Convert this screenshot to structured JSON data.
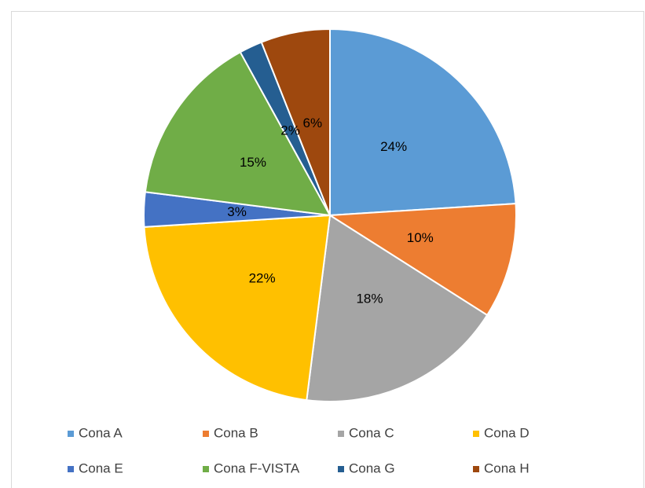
{
  "chart_data": {
    "type": "pie",
    "categories": [
      "Cona A",
      "Cona B",
      "Cona C",
      "Cona D",
      "Cona E",
      "Cona F-VISTA",
      "Cona G",
      "Cona H"
    ],
    "values": [
      24,
      10,
      18,
      22,
      3,
      15,
      2,
      6
    ],
    "value_labels": [
      "24%",
      "10%",
      "18%",
      "22%",
      "3%",
      "15%",
      "2%",
      "6%"
    ],
    "colors": [
      "#5b9bd5",
      "#ed7d31",
      "#a5a5a5",
      "#ffc000",
      "#4472c4",
      "#70ad47",
      "#255e91",
      "#9e480e"
    ],
    "legend": "bottom"
  }
}
